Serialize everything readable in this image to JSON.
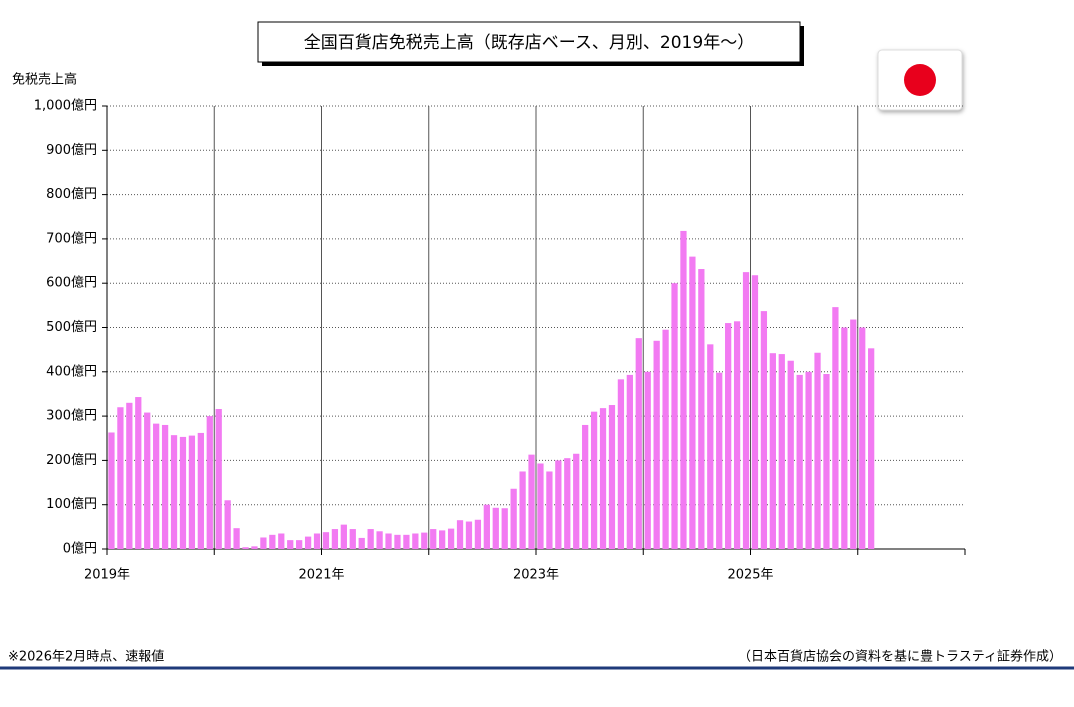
{
  "chart_data": {
    "type": "bar",
    "title": "全国百貨店免税売上高（既存店ベース、月別、2019年～）",
    "y_label": "免税売上高",
    "categories": [
      "2019年",
      null,
      null,
      null,
      null,
      null,
      null,
      null,
      null,
      null,
      null,
      null,
      null,
      null,
      null,
      null,
      null,
      null,
      null,
      null,
      null,
      null,
      null,
      null,
      "2021年",
      null,
      null,
      null,
      null,
      null,
      null,
      null,
      null,
      null,
      null,
      null,
      null,
      null,
      null,
      null,
      null,
      null,
      null,
      null,
      null,
      null,
      null,
      null,
      "2023年",
      null,
      null,
      null,
      null,
      null,
      null,
      null,
      null,
      null,
      null,
      null,
      null,
      null,
      null,
      null,
      null,
      null,
      null,
      null,
      null,
      null,
      null,
      null,
      "2025年",
      null,
      null,
      null,
      null,
      null,
      null,
      null,
      null,
      null,
      null,
      null,
      null,
      null,
      null,
      null,
      null,
      null,
      null,
      null,
      null,
      null,
      null,
      null
    ],
    "values": [
      263,
      320,
      330,
      343,
      308,
      283,
      280,
      257,
      253,
      256,
      262,
      300,
      316,
      110,
      47,
      4,
      6,
      26,
      32,
      35,
      20,
      20,
      28,
      35,
      38,
      45,
      55,
      45,
      25,
      45,
      40,
      35,
      32,
      32,
      35,
      37,
      45,
      42,
      46,
      65,
      62,
      66,
      100,
      93,
      92,
      136,
      175,
      213,
      193,
      175,
      200,
      205,
      215,
      280,
      310,
      318,
      325,
      383,
      393,
      476,
      400,
      470,
      495,
      600,
      718,
      660,
      632,
      462,
      398,
      510,
      514,
      625,
      618,
      537,
      442,
      440,
      425,
      393,
      400,
      443,
      395,
      546,
      500,
      518,
      500,
      453,
      null,
      null,
      null,
      null,
      null,
      null,
      null,
      null,
      null,
      null
    ],
    "color": "#f27af2",
    "ylim": [
      0,
      1000
    ],
    "yticks": [
      {
        "value": 0,
        "label": "0億円"
      },
      {
        "value": 100,
        "label": "100億円"
      },
      {
        "value": 200,
        "label": "200億円"
      },
      {
        "value": 300,
        "label": "300億円"
      },
      {
        "value": 400,
        "label": "400億円"
      },
      {
        "value": 500,
        "label": "500億円"
      },
      {
        "value": 600,
        "label": "600億円"
      },
      {
        "value": 700,
        "label": "700億円"
      },
      {
        "value": 800,
        "label": "800億円"
      },
      {
        "value": 900,
        "label": "900億円"
      },
      {
        "value": 1000,
        "label": "1,000億円"
      }
    ],
    "grid": true,
    "note": "※2026年2月時点、速報値",
    "source": "（日本百貨店協会の資料を基に豊トラスティ証券作成）"
  }
}
